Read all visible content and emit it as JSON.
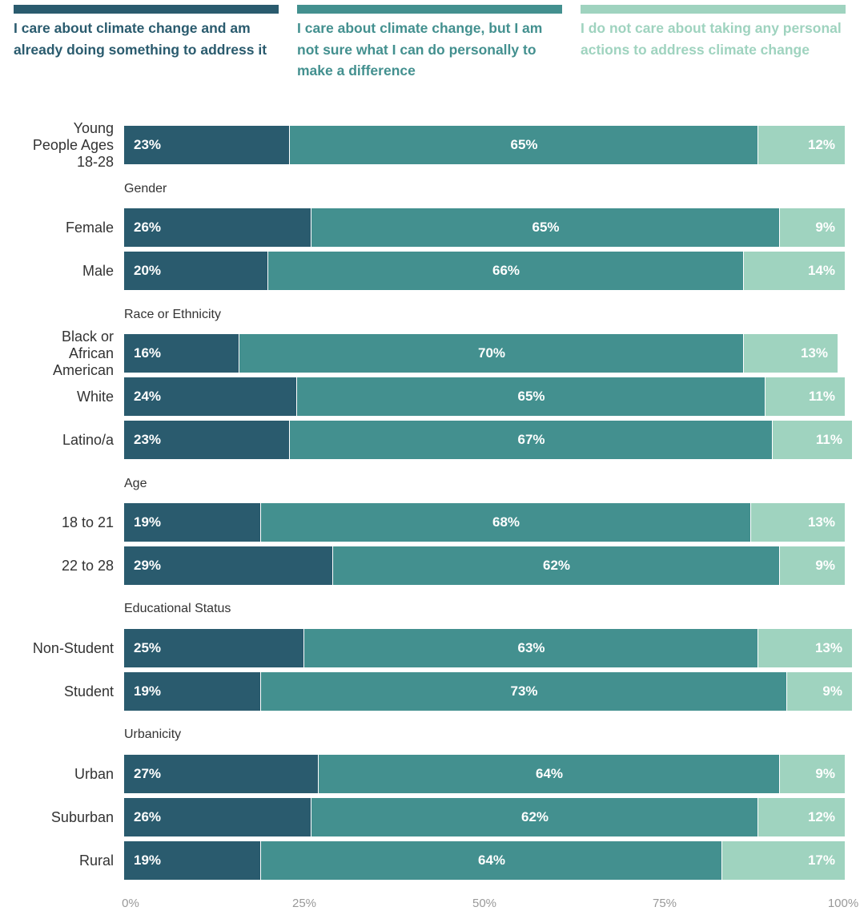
{
  "colors": {
    "series": [
      "#2a5b6e",
      "#43908f",
      "#9fd3bf"
    ],
    "gap": "#ffffff",
    "tick": "#999999",
    "label": "#333333"
  },
  "chart_data": {
    "type": "bar",
    "orientation": "horizontal",
    "stacked": true,
    "legend_position": "top",
    "xlim": [
      0,
      100
    ],
    "x_ticks": [
      "0%",
      "25%",
      "50%",
      "75%",
      "100%"
    ],
    "series": [
      {
        "name": "I care about climate change and am already doing something to address it"
      },
      {
        "name": "I care about climate change, but I am not sure what I can do personally to make a difference"
      },
      {
        "name": "I do not care about taking any personal actions to address climate change"
      }
    ],
    "groups": [
      {
        "label": "",
        "rows": [
          {
            "label": "Young\nPeople Ages\n18-28",
            "values": [
              23,
              65,
              12
            ]
          }
        ]
      },
      {
        "label": "Gender",
        "rows": [
          {
            "label": "Female",
            "values": [
              26,
              65,
              9
            ]
          },
          {
            "label": "Male",
            "values": [
              20,
              66,
              14
            ]
          }
        ]
      },
      {
        "label": "Race or Ethnicity",
        "rows": [
          {
            "label": "Black or\nAfrican\nAmerican",
            "values": [
              16,
              70,
              13
            ]
          },
          {
            "label": "White",
            "values": [
              24,
              65,
              11
            ]
          },
          {
            "label": "Latino/a",
            "values": [
              23,
              67,
              11
            ]
          }
        ]
      },
      {
        "label": "Age",
        "rows": [
          {
            "label": "18 to 21",
            "values": [
              19,
              68,
              13
            ]
          },
          {
            "label": "22 to 28",
            "values": [
              29,
              62,
              9
            ]
          }
        ]
      },
      {
        "label": "Educational Status",
        "rows": [
          {
            "label": "Non-Student",
            "values": [
              25,
              63,
              13
            ]
          },
          {
            "label": "Student",
            "values": [
              19,
              73,
              9
            ]
          }
        ]
      },
      {
        "label": "Urbanicity",
        "rows": [
          {
            "label": "Urban",
            "values": [
              27,
              64,
              9
            ]
          },
          {
            "label": "Suburban",
            "values": [
              26,
              62,
              12
            ]
          },
          {
            "label": "Rural",
            "values": [
              19,
              64,
              17
            ]
          }
        ]
      }
    ]
  }
}
